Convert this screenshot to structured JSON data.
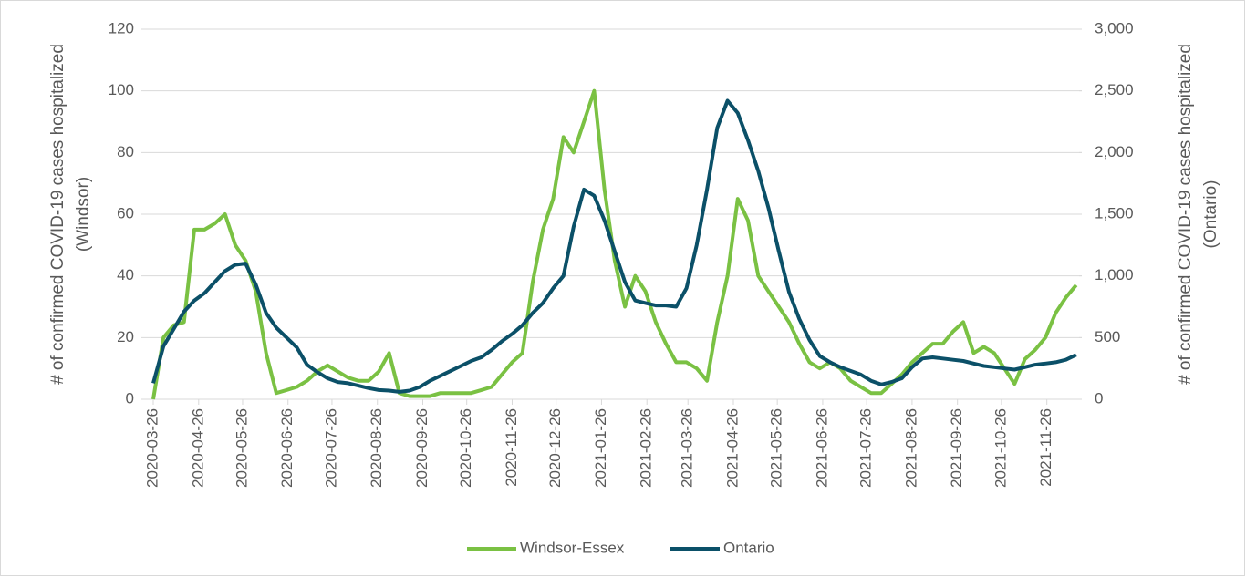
{
  "chart_data": {
    "type": "line",
    "ylabel": [
      "# of confirmed COVID-19 cases hospitalized",
      "(Windsor)"
    ],
    "y2label": [
      "# of confirmed COVID-19 cases hospitalized",
      "(Ontario)"
    ],
    "x": [
      "2020-03-26",
      "2020-04-02",
      "2020-04-09",
      "2020-04-16",
      "2020-04-23",
      "2020-04-30",
      "2020-05-07",
      "2020-05-14",
      "2020-05-21",
      "2020-05-28",
      "2020-06-04",
      "2020-06-11",
      "2020-06-18",
      "2020-06-25",
      "2020-07-02",
      "2020-07-09",
      "2020-07-16",
      "2020-07-23",
      "2020-07-30",
      "2020-08-06",
      "2020-08-13",
      "2020-08-20",
      "2020-08-27",
      "2020-09-03",
      "2020-09-10",
      "2020-09-17",
      "2020-09-24",
      "2020-10-01",
      "2020-10-08",
      "2020-10-15",
      "2020-10-22",
      "2020-10-29",
      "2020-11-05",
      "2020-11-12",
      "2020-11-19",
      "2020-11-26",
      "2020-12-03",
      "2020-12-10",
      "2020-12-17",
      "2020-12-24",
      "2020-12-31",
      "2021-01-07",
      "2021-01-14",
      "2021-01-21",
      "2021-01-28",
      "2021-02-04",
      "2021-02-11",
      "2021-02-18",
      "2021-02-25",
      "2021-03-04",
      "2021-03-11",
      "2021-03-18",
      "2021-03-25",
      "2021-04-01",
      "2021-04-08",
      "2021-04-15",
      "2021-04-22",
      "2021-04-29",
      "2021-05-06",
      "2021-05-13",
      "2021-05-20",
      "2021-05-27",
      "2021-06-03",
      "2021-06-10",
      "2021-06-17",
      "2021-06-24",
      "2021-07-01",
      "2021-07-08",
      "2021-07-15",
      "2021-07-22",
      "2021-07-29",
      "2021-08-05",
      "2021-08-12",
      "2021-08-19",
      "2021-08-26",
      "2021-09-02",
      "2021-09-09",
      "2021-09-16",
      "2021-09-23",
      "2021-09-30",
      "2021-10-07",
      "2021-10-14",
      "2021-10-21",
      "2021-10-28",
      "2021-11-04",
      "2021-11-11",
      "2021-11-18",
      "2021-11-25",
      "2021-12-02",
      "2021-12-09",
      "2021-12-16"
    ],
    "xlim": [
      "2020-03-26",
      "2021-12-18"
    ],
    "xticks": [
      "2020-03-26",
      "2020-04-26",
      "2020-05-26",
      "2020-06-26",
      "2020-07-26",
      "2020-08-26",
      "2020-09-26",
      "2020-10-26",
      "2020-11-26",
      "2020-12-26",
      "2021-01-26",
      "2021-02-26",
      "2021-03-26",
      "2021-04-26",
      "2021-05-26",
      "2021-06-26",
      "2021-07-26",
      "2021-08-26",
      "2021-09-26",
      "2021-10-26",
      "2021-11-26"
    ],
    "ylim": [
      0,
      120
    ],
    "yticks": [
      0,
      20,
      40,
      60,
      80,
      100,
      120
    ],
    "y2lim": [
      0,
      3000
    ],
    "y2ticks": [
      0,
      500,
      {
        "value": 1000,
        "label": "1,000"
      },
      {
        "value": 1500,
        "label": "1,500"
      },
      {
        "value": 2000,
        "label": "2,000"
      },
      {
        "value": 2500,
        "label": "2,500"
      },
      {
        "value": 3000,
        "label": "3,000"
      }
    ],
    "grid": true,
    "legend": "bottom",
    "series": [
      {
        "name": "Windsor-Essex",
        "color": "#7ac143",
        "values": [
          0,
          20,
          24,
          25,
          55,
          55,
          57,
          60,
          50,
          45,
          35,
          15,
          2,
          3,
          4,
          6,
          9,
          11,
          9,
          7,
          6,
          6,
          9,
          15,
          2,
          1,
          1,
          1,
          2,
          2,
          2,
          2,
          3,
          4,
          8,
          12,
          15,
          38,
          55,
          65,
          85,
          80,
          90,
          100,
          68,
          45,
          30,
          40,
          35,
          25,
          18,
          12,
          12,
          10,
          6,
          25,
          40,
          65,
          58,
          40,
          35,
          30,
          25,
          18,
          12,
          10,
          12,
          10,
          6,
          4,
          2,
          2,
          5,
          8,
          12,
          15,
          18,
          18,
          22,
          25,
          15,
          17,
          15,
          10,
          5,
          13,
          16,
          20,
          28,
          33,
          37
        ]
      },
      {
        "name": "Ontario",
        "color": "#0b5068",
        "axis": "y2",
        "values": [
          130,
          430,
          570,
          710,
          800,
          860,
          950,
          1040,
          1090,
          1100,
          930,
          700,
          580,
          500,
          420,
          280,
          220,
          170,
          140,
          130,
          110,
          90,
          75,
          70,
          60,
          70,
          100,
          150,
          190,
          230,
          270,
          310,
          340,
          400,
          470,
          530,
          600,
          700,
          780,
          900,
          1000,
          1400,
          1700,
          1650,
          1450,
          1200,
          950,
          800,
          780,
          760,
          760,
          750,
          900,
          1250,
          1700,
          2200,
          2420,
          2320,
          2100,
          1850,
          1550,
          1200,
          870,
          650,
          480,
          350,
          300,
          260,
          230,
          200,
          150,
          120,
          140,
          170,
          260,
          330,
          340,
          330,
          320,
          310,
          290,
          270,
          260,
          250,
          240,
          260,
          280,
          290,
          300,
          320,
          360
        ]
      }
    ]
  }
}
